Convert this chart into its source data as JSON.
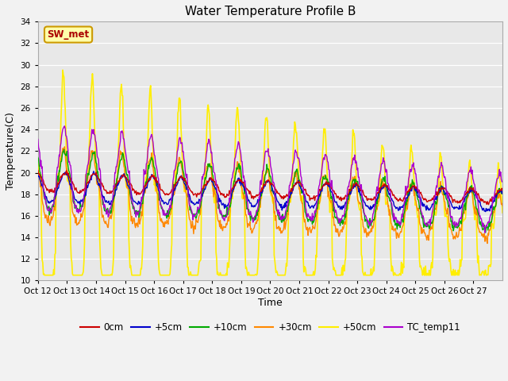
{
  "title": "Water Temperature Profile B",
  "xlabel": "Time",
  "ylabel": "Temperature(C)",
  "ylim": [
    10,
    34
  ],
  "yticks": [
    10,
    12,
    14,
    16,
    18,
    20,
    22,
    24,
    26,
    28,
    30,
    32,
    34
  ],
  "fig_bg": "#f2f2f2",
  "plot_bg": "#e8e8e8",
  "series": {
    "0cm": {
      "color": "#cc0000",
      "lw": 1.0,
      "zorder": 7
    },
    "+5cm": {
      "color": "#0000cc",
      "lw": 1.0,
      "zorder": 6
    },
    "+10cm": {
      "color": "#00aa00",
      "lw": 1.0,
      "zorder": 5
    },
    "+30cm": {
      "color": "#ff8800",
      "lw": 1.0,
      "zorder": 4
    },
    "+50cm": {
      "color": "#ffee00",
      "lw": 1.2,
      "zorder": 3
    },
    "TC_temp11": {
      "color": "#aa00cc",
      "lw": 1.0,
      "zorder": 8
    }
  },
  "xtick_labels": [
    "Oct 12",
    "Oct 13",
    "Oct 14",
    "Oct 15",
    "Oct 16",
    "Oct 17",
    "Oct 18",
    "Oct 19",
    "Oct 20",
    "Oct 21",
    "Oct 22",
    "Oct 23",
    "Oct 24",
    "Oct 25",
    "Oct 26",
    "Oct 27"
  ],
  "annotation_text": "SW_met",
  "annotation_color": "#aa0000",
  "annotation_bg": "#ffffaa",
  "annotation_border": "#cc9900"
}
